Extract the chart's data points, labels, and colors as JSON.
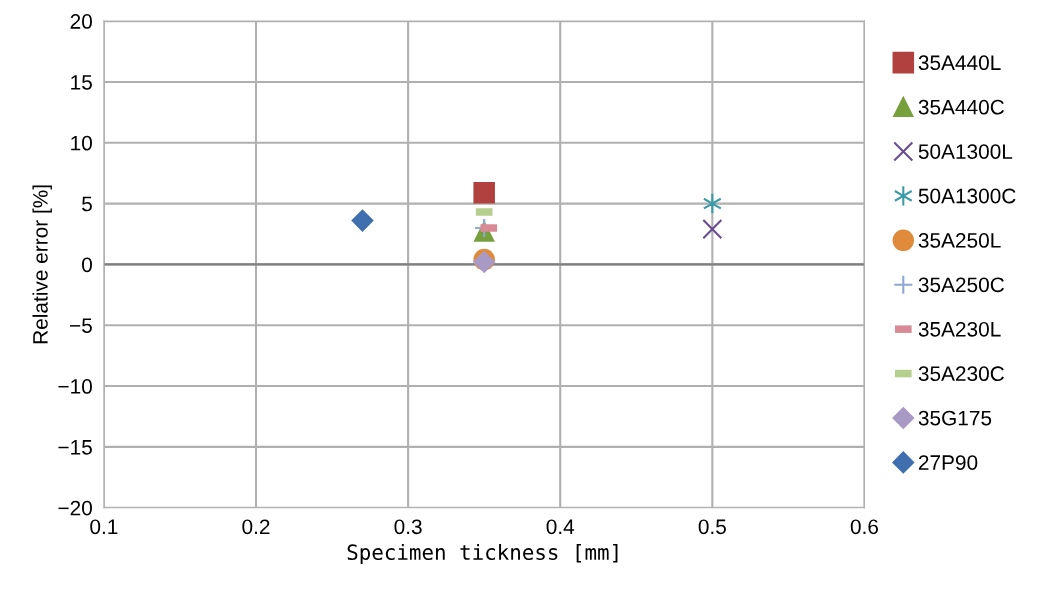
{
  "chart_data": {
    "type": "scatter",
    "xlabel": "Specimen tickness [mm]",
    "ylabel": "Relative error [%]",
    "xlim": [
      0.1,
      0.6
    ],
    "xticks": [
      0.1,
      0.2,
      0.3,
      0.4,
      0.5,
      0.6
    ],
    "ylim": [
      -20,
      20
    ],
    "yticks": [
      -20,
      -15,
      -10,
      -5,
      0,
      5,
      10,
      15,
      20
    ],
    "grid": true,
    "legend": "right",
    "series": [
      {
        "name": "35A440L",
        "color": "#b0413e",
        "marker": "square",
        "x": [
          0.35
        ],
        "values": [
          5.9
        ]
      },
      {
        "name": "35A440C",
        "color": "#77a03c",
        "marker": "triangle",
        "x": [
          0.35
        ],
        "values": [
          2.7
        ]
      },
      {
        "name": "50A1300L",
        "color": "#6a4c93",
        "marker": "cross",
        "x": [
          0.5
        ],
        "values": [
          2.9
        ]
      },
      {
        "name": "50A1300C",
        "color": "#3a9aa8",
        "marker": "cross",
        "x": [
          0.5
        ],
        "values": [
          5.0
        ]
      },
      {
        "name": "35A250L",
        "color": "#e08a3c",
        "marker": "circle",
        "x": [
          0.35
        ],
        "values": [
          0.4
        ]
      },
      {
        "name": "35A250C",
        "color": "#8ea6d4",
        "marker": "plus",
        "x": [
          0.35
        ],
        "values": [
          3.0
        ]
      },
      {
        "name": "35A230L",
        "color": "#d98a94",
        "marker": "square",
        "x": [
          0.353
        ],
        "values": [
          3.0
        ]
      },
      {
        "name": "35A230C",
        "color": "#b5cf8e",
        "marker": "square",
        "x": [
          0.35
        ],
        "values": [
          4.3
        ]
      },
      {
        "name": "35G175",
        "color": "#a89ac4",
        "marker": "diamond",
        "x": [
          0.35
        ],
        "values": [
          0.2
        ]
      },
      {
        "name": "27P90",
        "color": "#3f6fae",
        "marker": "diamond",
        "x": [
          0.27
        ],
        "values": [
          3.6
        ]
      }
    ]
  }
}
